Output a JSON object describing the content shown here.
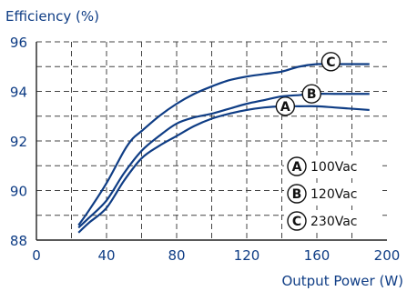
{
  "chart_data": {
    "type": "line",
    "ylabel": "Efficiency (%)",
    "xlabel": "Output Power (W)",
    "xlim": [
      0,
      200
    ],
    "ylim": [
      88,
      96
    ],
    "x_ticks": [
      0,
      40,
      80,
      120,
      160,
      200
    ],
    "y_ticks": [
      88,
      90,
      92,
      94,
      96
    ],
    "grid": true,
    "legend_position": "bottom-right",
    "colors": {
      "line": "#0f3d85",
      "axis_text": "#0f3d85",
      "grid": "#444444"
    },
    "series": [
      {
        "name": "100Vac",
        "marker": "A",
        "x": [
          24,
          30,
          40,
          50,
          60,
          70,
          80,
          90,
          100,
          110,
          120,
          130,
          140,
          150,
          160,
          170,
          180,
          190
        ],
        "y": [
          88.3,
          88.7,
          89.3,
          90.4,
          91.3,
          91.8,
          92.2,
          92.6,
          92.9,
          93.1,
          93.25,
          93.35,
          93.4,
          93.4,
          93.4,
          93.35,
          93.3,
          93.25
        ]
      },
      {
        "name": "120Vac",
        "marker": "B",
        "x": [
          24,
          30,
          40,
          50,
          60,
          70,
          80,
          90,
          100,
          110,
          120,
          130,
          140,
          150,
          160,
          170,
          180,
          190
        ],
        "y": [
          88.5,
          88.9,
          89.6,
          90.7,
          91.6,
          92.2,
          92.7,
          92.95,
          93.1,
          93.3,
          93.5,
          93.65,
          93.8,
          93.85,
          93.9,
          93.9,
          93.9,
          93.9
        ]
      },
      {
        "name": "230Vac",
        "marker": "C",
        "x": [
          24,
          30,
          40,
          50,
          55,
          60,
          70,
          80,
          90,
          100,
          110,
          120,
          130,
          140,
          150,
          160,
          170,
          180,
          190
        ],
        "y": [
          88.6,
          89.2,
          90.3,
          91.6,
          92.1,
          92.4,
          93.0,
          93.5,
          93.9,
          94.2,
          94.45,
          94.6,
          94.7,
          94.8,
          95.0,
          95.1,
          95.1,
          95.1,
          95.1
        ]
      }
    ]
  }
}
